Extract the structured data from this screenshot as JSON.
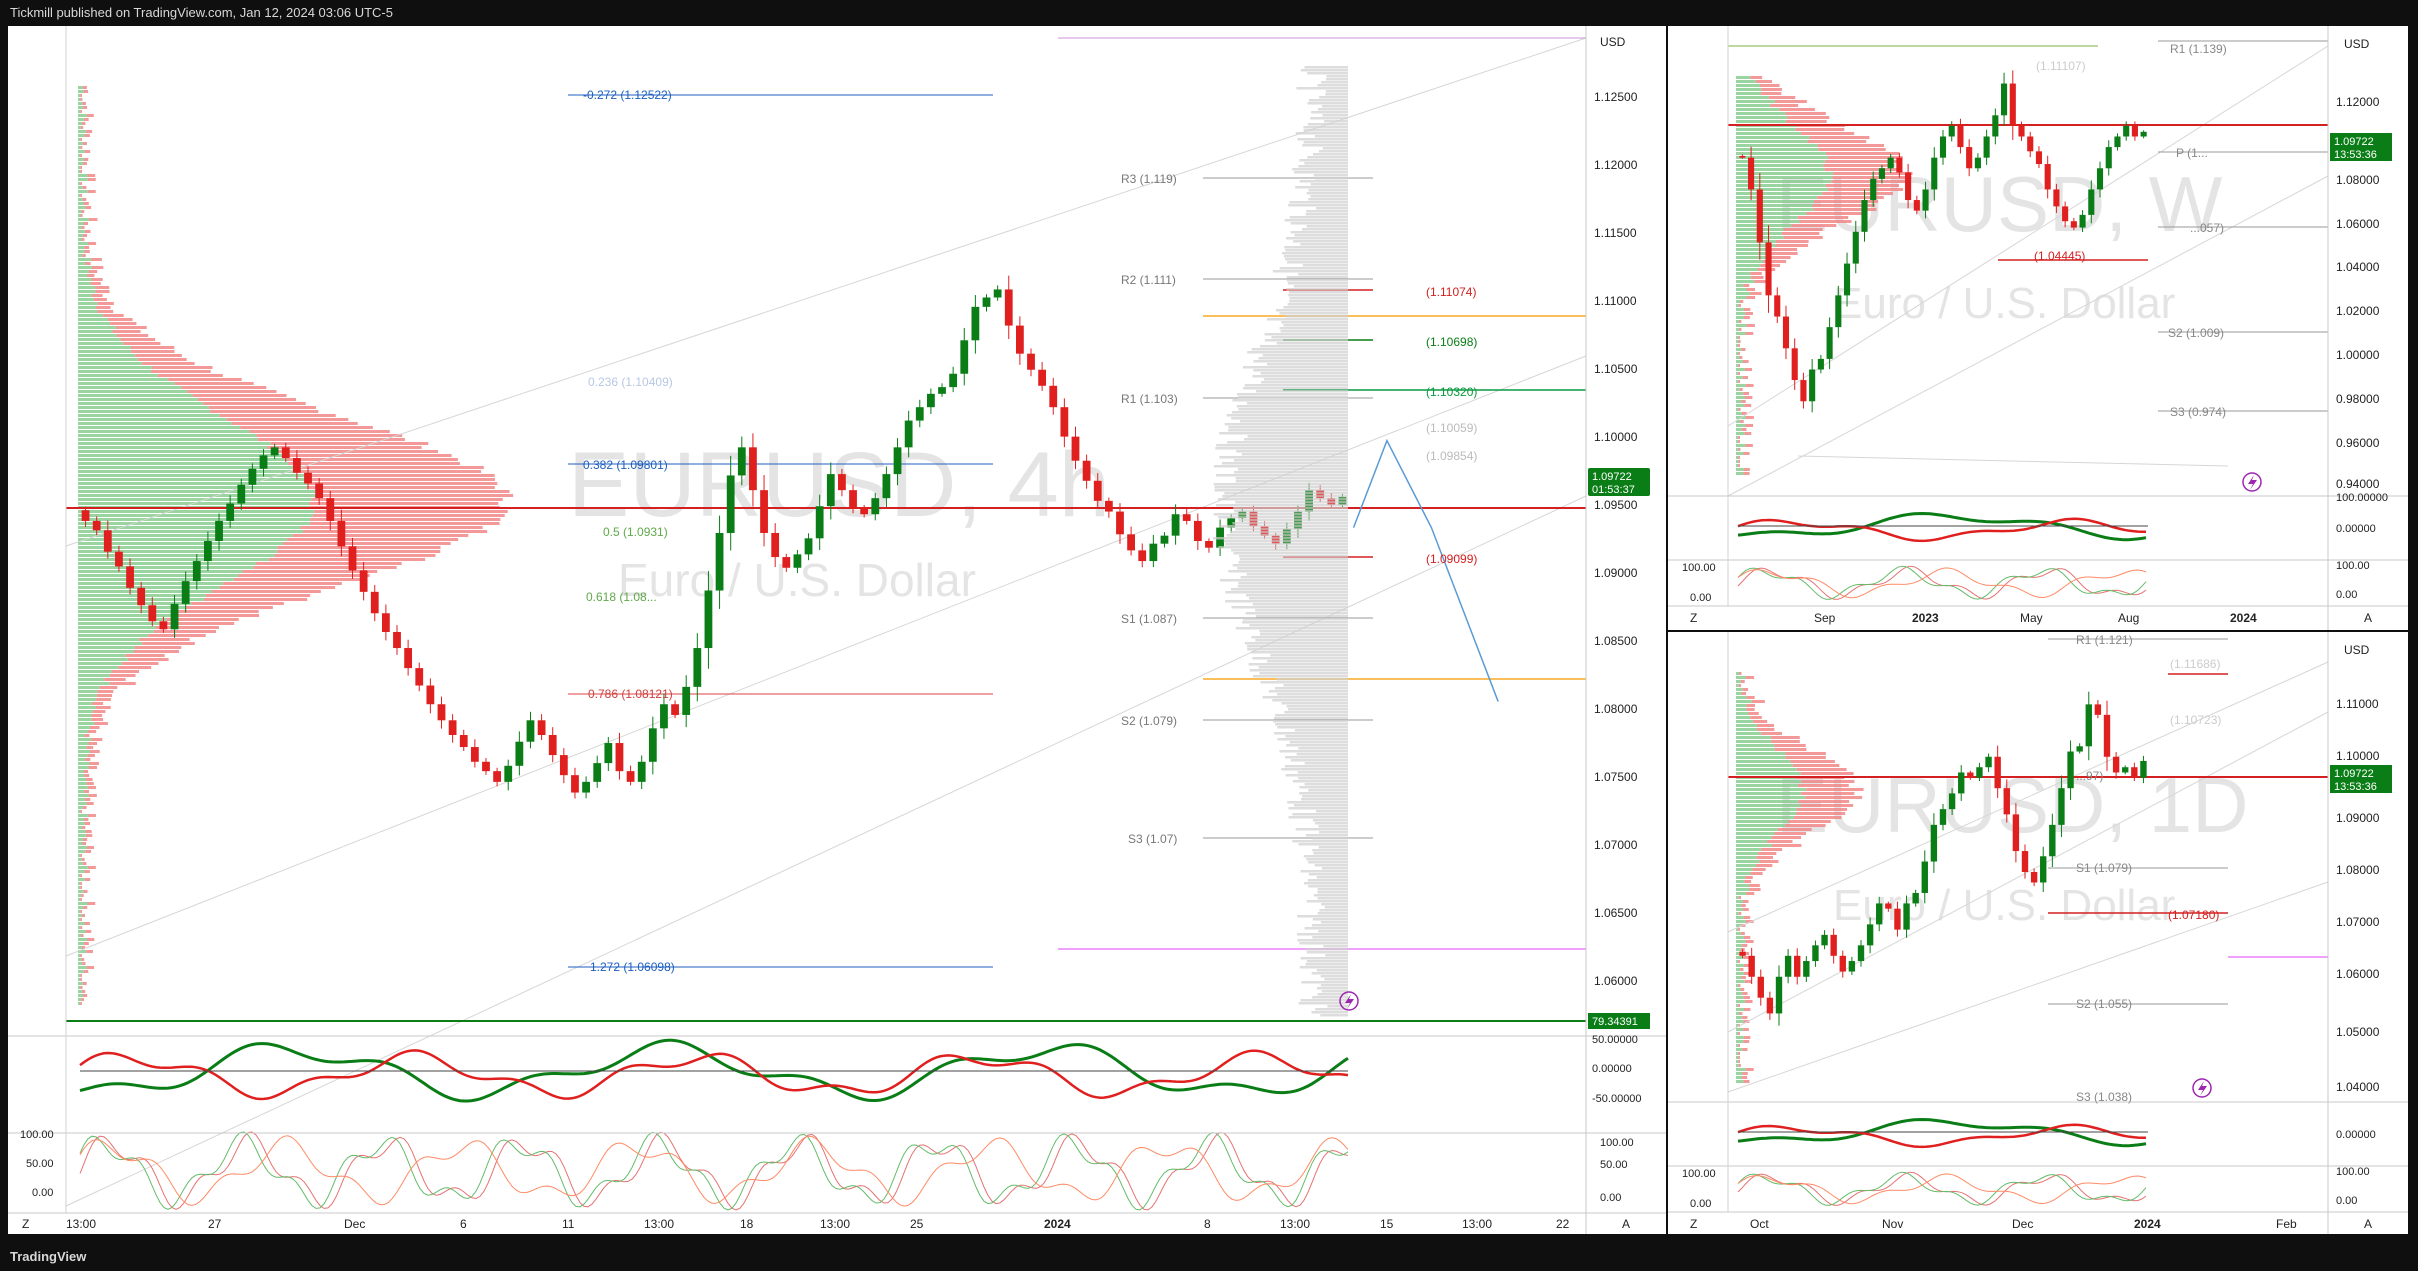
{
  "header": {
    "published": "Tickmill published on TradingView.com, Jan 12, 2024 03:06 UTC-5"
  },
  "footer": {
    "logo": "TradingView"
  },
  "colors": {
    "up": "#0a7d16",
    "down": "#e01f1f",
    "accent_blue": "#1e88e5",
    "price_green": "#089981"
  },
  "main_chart": {
    "watermark_symbol": "EURUSD, 4h",
    "watermark_name": "Euro / U.S. Dollar",
    "currency": "USD",
    "price_badge": "1.09722",
    "countdown": "01:53:37",
    "y_ticks": [
      "1.12500",
      "1.12000",
      "1.11500",
      "1.11000",
      "1.10500",
      "1.10000",
      "1.09500",
      "1.09000",
      "1.08500",
      "1.08000",
      "1.07500",
      "1.07000",
      "1.06500",
      "1.06000"
    ],
    "x_ticks": [
      "13:00",
      "27",
      "Dec",
      "6",
      "11",
      "13:00",
      "18",
      "13:00",
      "25",
      "2024",
      "8",
      "13:00",
      "15",
      "13:00",
      "22"
    ],
    "fib_labels": [
      "-0.272 (1.12522)",
      "0.236 (1.10409)",
      "0.382 (1.09801)",
      "0.5 (1.0931)",
      "0.618 (1.08...",
      "0.786 (1.08121)",
      "1.272 (1.06098)"
    ],
    "pivot_labels": [
      "R3 (1.119)",
      "R2 (1.111)",
      "R1 (1.103)",
      "S1 (1.087)",
      "S2 (1.079)",
      "S3 (1.07)"
    ],
    "level_labels": [
      "(1.11074)",
      "(1.10698)",
      "(1.10320)",
      "(1.10059)",
      "(1.09854)",
      "(1.09099)"
    ],
    "rsi_badge": "79.34391",
    "rsi_ticks": [
      "50.00000",
      "0.00000",
      "-50.00000"
    ],
    "stoch_ticks": [
      "100.00",
      "50.00",
      "0.00"
    ],
    "bottom_letters": [
      "Z",
      "A"
    ]
  },
  "weekly_chart": {
    "watermark_symbol": "EURUSD, W",
    "watermark_name": "Euro / U.S. Dollar",
    "currency": "USD",
    "price_badge": "1.09722",
    "countdown": "13:53:36",
    "y_ticks": [
      "1.12000",
      "1.10000",
      "1.08000",
      "1.06000",
      "1.04000",
      "1.02000",
      "1.00000",
      "0.98000",
      "0.96000",
      "0.94000"
    ],
    "x_ticks": [
      "Sep",
      "2023",
      "May",
      "Aug",
      "2024"
    ],
    "labels": [
      "R1 (1.139)",
      "(1.11107)",
      "P (1...",
      "(1.04445)",
      "...057)",
      "S2 (1.009)",
      "S3 (0.974)"
    ],
    "osc_ticks": [
      "100.00000",
      "0.00000",
      "100.00",
      "0.00"
    ],
    "bottom_letters": [
      "Z",
      "A"
    ]
  },
  "daily_chart": {
    "watermark_symbol": "EURUSD, 1D",
    "watermark_name": "Euro / U.S. Dollar",
    "currency": "USD",
    "price_badge": "1.09722",
    "countdown": "13:53:36",
    "y_ticks": [
      "1.11000",
      "1.10000",
      "1.09000",
      "1.08000",
      "1.07000",
      "1.06000",
      "1.05000",
      "1.04000"
    ],
    "x_ticks": [
      "Oct",
      "Nov",
      "Dec",
      "2024",
      "Feb"
    ],
    "labels": [
      "R1 (1.121)",
      "(1.11686)",
      "(1.10723)",
      "...97)",
      "S1 (1.079)",
      "(1.07180)",
      "S2 (1.055)",
      "S3 (1.038)"
    ],
    "osc_ticks": [
      "0.00000",
      "100.00",
      "0.00"
    ],
    "bottom_letters": [
      "Z",
      "A"
    ]
  },
  "chart_data": [
    {
      "type": "candlestick",
      "title": "EURUSD, 4h",
      "ylim": [
        1.0585,
        1.1295
      ],
      "candles_close": [
        1.0955,
        1.0948,
        1.0932,
        1.0921,
        1.0905,
        1.0892,
        1.088,
        1.0874,
        1.0893,
        1.091,
        1.0925,
        1.094,
        1.0955,
        1.0968,
        1.0982,
        1.0994,
        1.1004,
        1.101,
        1.1002,
        1.0991,
        1.0983,
        1.0972,
        1.0955,
        1.0936,
        1.0918,
        1.0902,
        1.0886,
        1.0872,
        1.086,
        1.0845,
        1.0832,
        1.0818,
        1.0806,
        1.0795,
        1.0786,
        1.0775,
        1.0768,
        1.076,
        1.0772,
        1.079,
        1.0806,
        1.0795,
        1.078,
        1.0765,
        1.0752,
        1.076,
        1.0774,
        1.0789,
        1.0768,
        1.076,
        1.0775,
        1.08,
        1.0818,
        1.081,
        1.0831,
        1.086,
        1.0903,
        1.0946,
        1.0989,
        1.101,
        1.0978,
        1.0946,
        1.0928,
        1.092,
        1.093,
        1.0942,
        1.0966,
        1.099,
        1.0978,
        1.0965,
        1.096,
        1.0972,
        1.099,
        1.101,
        1.103,
        1.104,
        1.105,
        1.1055,
        1.1065,
        1.109,
        1.1115,
        1.1122,
        1.1128,
        1.1101,
        1.108,
        1.1068,
        1.1056,
        1.104,
        1.1018,
        1.1,
        1.0985,
        1.097,
        1.0962,
        1.0945,
        1.0933,
        1.0925,
        1.0938,
        1.0944,
        1.096,
        1.0955,
        1.094,
        1.0935,
        1.095,
        1.0957,
        1.0962,
        1.0951,
        1.0944,
        1.0938,
        1.0949,
        1.0962,
        1.0978,
        1.0972,
        1.0967,
        1.0973
      ],
      "series": [
        {
          "name": "Projection",
          "points": [
            [
              114,
              1.095
            ],
            [
              117,
              1.1015
            ],
            [
              121,
              1.095
            ],
            [
              127,
              1.082
            ]
          ]
        }
      ]
    },
    {
      "type": "candlestick",
      "title": "EURUSD, W",
      "ylim": [
        0.93,
        1.133
      ],
      "candles_close": [
        1.085,
        1.07,
        1.045,
        1.02,
        1.01,
        0.995,
        0.98,
        0.97,
        0.985,
        0.99,
        1.005,
        1.02,
        1.035,
        1.05,
        1.065,
        1.075,
        1.08,
        1.085,
        1.078,
        1.065,
        1.06,
        1.07,
        1.085,
        1.095,
        1.1,
        1.09,
        1.08,
        1.085,
        1.095,
        1.105,
        1.12,
        1.1,
        1.095,
        1.088,
        1.082,
        1.07,
        1.062,
        1.055,
        1.052,
        1.058,
        1.07,
        1.08,
        1.09,
        1.095,
        1.1,
        1.095,
        1.0972
      ],
      "series": []
    },
    {
      "type": "candlestick",
      "title": "EURUSD, 1D",
      "ylim": [
        1.034,
        1.118
      ],
      "candles_close": [
        1.06,
        1.056,
        1.052,
        1.049,
        1.056,
        1.06,
        1.056,
        1.059,
        1.062,
        1.064,
        1.06,
        1.057,
        1.059,
        1.062,
        1.066,
        1.07,
        1.069,
        1.065,
        1.07,
        1.072,
        1.078,
        1.085,
        1.088,
        1.091,
        1.095,
        1.094,
        1.096,
        1.098,
        1.092,
        1.087,
        1.08,
        1.076,
        1.074,
        1.079,
        1.085,
        1.092,
        1.099,
        1.1,
        1.108,
        1.106,
        1.098,
        1.095,
        1.096,
        1.094,
        1.0972
      ],
      "series": []
    }
  ]
}
